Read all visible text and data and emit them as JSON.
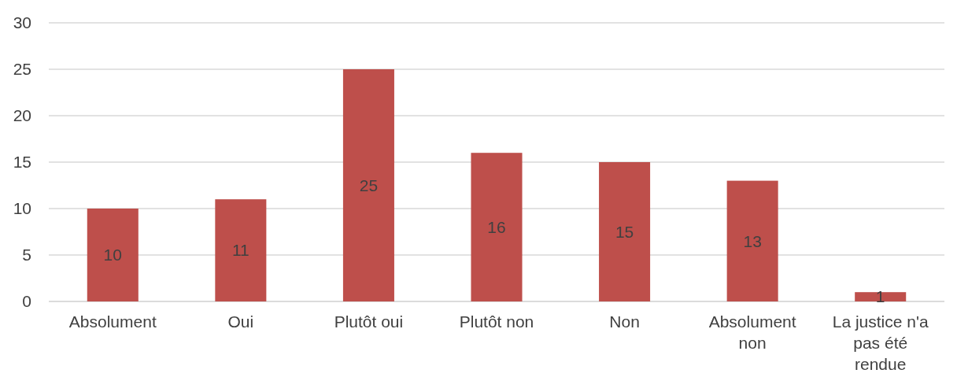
{
  "chart_data": {
    "type": "bar",
    "categories": [
      "Absolument",
      "Oui",
      "Plutôt oui",
      "Plutôt non",
      "Non",
      "Absolument non",
      "La justice n'a pas été rendue"
    ],
    "values": [
      10,
      11,
      25,
      16,
      15,
      13,
      1
    ],
    "color": "#be4f4b",
    "ylim": [
      0,
      30
    ],
    "yticks": [
      0,
      5,
      10,
      15,
      20,
      25,
      30
    ],
    "grid": "y",
    "data_labels": true
  }
}
